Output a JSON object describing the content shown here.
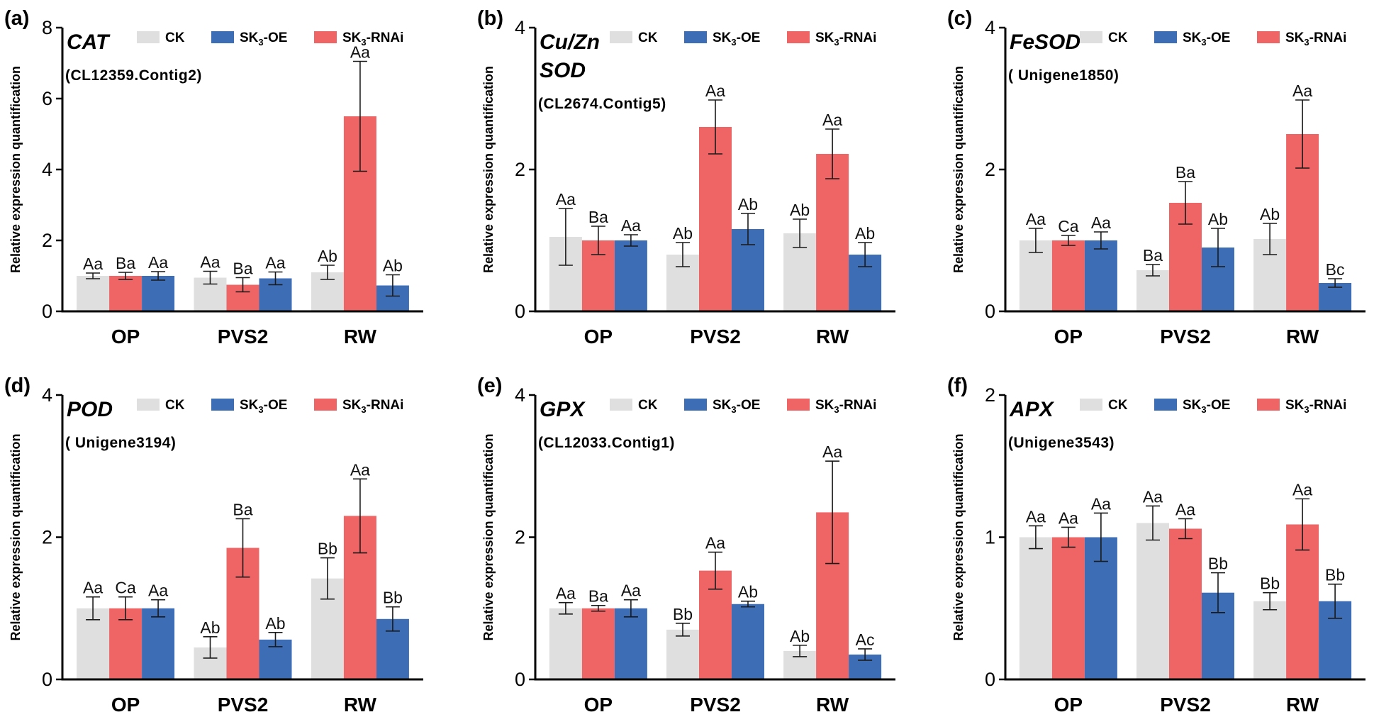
{
  "figure": {
    "categories": [
      "OP",
      "PVS2",
      "RW"
    ],
    "ylabel": "Relative  expression quantification",
    "legend": [
      {
        "key": "ck",
        "label": "CK",
        "color": "#dedfde"
      },
      {
        "key": "oe",
        "base": "SK",
        "sub": "3",
        "suffix": "-OE",
        "color": "#3d6db5"
      },
      {
        "key": "rnai",
        "base": "SK",
        "sub": "3",
        "suffix": "-RNAi",
        "color": "#ef6465"
      }
    ]
  },
  "chart_data": [
    {
      "type": "bar",
      "panel": "(a)",
      "gene": [
        "CAT"
      ],
      "contig": "(CL12359.Contig2)",
      "categories": [
        "OP",
        "PVS2",
        "RW"
      ],
      "ylabel": "Relative  expression quantification",
      "ylim": [
        0,
        8
      ],
      "yticks": [
        0,
        2,
        4,
        6,
        8
      ],
      "series": [
        {
          "name": "CK",
          "values": [
            1.0,
            0.95,
            1.1
          ],
          "errors": [
            0.08,
            0.18,
            0.2
          ],
          "labels": [
            "Aa",
            "Aa",
            "Ab"
          ]
        },
        {
          "name": "SK3-RNAi",
          "values": [
            1.0,
            0.75,
            5.5
          ],
          "errors": [
            0.1,
            0.2,
            1.55
          ],
          "labels": [
            "Ba",
            "Ba",
            "Aa"
          ]
        },
        {
          "name": "SK3-OE",
          "values": [
            1.0,
            0.93,
            0.73
          ],
          "errors": [
            0.12,
            0.18,
            0.3
          ],
          "labels": [
            "Aa",
            "Aa",
            "Ab"
          ]
        }
      ]
    },
    {
      "type": "bar",
      "panel": "(b)",
      "gene": [
        "Cu/Zn",
        "SOD"
      ],
      "contig": "(CL2674.Contig5)",
      "categories": [
        "OP",
        "PVS2",
        "RW"
      ],
      "ylabel": "Relative  expression quantification",
      "ylim": [
        0,
        4
      ],
      "yticks": [
        0,
        2,
        4
      ],
      "series": [
        {
          "name": "CK",
          "values": [
            1.05,
            0.8,
            1.1
          ],
          "errors": [
            0.4,
            0.17,
            0.2
          ],
          "labels": [
            "Aa",
            "Ab",
            "Ab"
          ]
        },
        {
          "name": "SK3-RNAi",
          "values": [
            1.0,
            2.6,
            2.22
          ],
          "errors": [
            0.2,
            0.38,
            0.35
          ],
          "labels": [
            "Ba",
            "Aa",
            "Aa"
          ]
        },
        {
          "name": "SK3-OE",
          "values": [
            1.0,
            1.16,
            0.8
          ],
          "errors": [
            0.08,
            0.22,
            0.17
          ],
          "labels": [
            "Aa",
            "Ab",
            "Ab"
          ]
        }
      ]
    },
    {
      "type": "bar",
      "panel": "(c)",
      "gene": [
        "FeSOD"
      ],
      "contig": "( Unigene1850)",
      "categories": [
        "OP",
        "PVS2",
        "RW"
      ],
      "ylabel": "Relative  expression quantification",
      "ylim": [
        0,
        4
      ],
      "yticks": [
        0,
        2,
        4
      ],
      "series": [
        {
          "name": "CK",
          "values": [
            1.0,
            0.58,
            1.02
          ],
          "errors": [
            0.17,
            0.08,
            0.22
          ],
          "labels": [
            "Aa",
            "Ba",
            "Ab"
          ]
        },
        {
          "name": "SK3-RNAi",
          "values": [
            1.0,
            1.53,
            2.5
          ],
          "errors": [
            0.07,
            0.3,
            0.48
          ],
          "labels": [
            "Ca",
            "Ba",
            "Aa"
          ]
        },
        {
          "name": "SK3-OE",
          "values": [
            1.0,
            0.9,
            0.4
          ],
          "errors": [
            0.12,
            0.27,
            0.06
          ],
          "labels": [
            "Aa",
            "Ab",
            "Bc"
          ]
        }
      ]
    },
    {
      "type": "bar",
      "panel": "(d)",
      "gene": [
        "POD"
      ],
      "contig": "( Unigene3194)",
      "categories": [
        "OP",
        "PVS2",
        "RW"
      ],
      "ylabel": "Relative  expression quantification",
      "ylim": [
        0,
        4
      ],
      "yticks": [
        0,
        2,
        4
      ],
      "series": [
        {
          "name": "CK",
          "values": [
            1.0,
            0.45,
            1.42
          ],
          "errors": [
            0.16,
            0.15,
            0.29
          ],
          "labels": [
            "Aa",
            "Ab",
            "Bb"
          ]
        },
        {
          "name": "SK3-RNAi",
          "values": [
            1.0,
            1.85,
            2.3
          ],
          "errors": [
            0.16,
            0.41,
            0.52
          ],
          "labels": [
            "Ca",
            "Ba",
            "Aa"
          ]
        },
        {
          "name": "SK3-OE",
          "values": [
            1.0,
            0.56,
            0.85
          ],
          "errors": [
            0.12,
            0.1,
            0.17
          ],
          "labels": [
            "Aa",
            "Ab",
            "Bb"
          ]
        }
      ]
    },
    {
      "type": "bar",
      "panel": "(e)",
      "gene": [
        "GPX"
      ],
      "contig": "(CL12033.Contig1)",
      "categories": [
        "OP",
        "PVS2",
        "RW"
      ],
      "ylabel": "Relative  expression quantification",
      "ylim": [
        0,
        4
      ],
      "yticks": [
        0,
        2,
        4
      ],
      "series": [
        {
          "name": "CK",
          "values": [
            1.0,
            0.7,
            0.4
          ],
          "errors": [
            0.08,
            0.09,
            0.08
          ],
          "labels": [
            "Aa",
            "Bb",
            "Ab"
          ]
        },
        {
          "name": "SK3-RNAi",
          "values": [
            1.0,
            1.53,
            2.35
          ],
          "errors": [
            0.04,
            0.26,
            0.72
          ],
          "labels": [
            "Ba",
            "Aa",
            "Aa"
          ]
        },
        {
          "name": "SK3-OE",
          "values": [
            1.0,
            1.06,
            0.35
          ],
          "errors": [
            0.12,
            0.04,
            0.08
          ],
          "labels": [
            "Aa",
            "Ab",
            "Ac"
          ]
        }
      ]
    },
    {
      "type": "bar",
      "panel": "(f)",
      "gene": [
        "APX"
      ],
      "contig": "(Unigene3543)",
      "categories": [
        "OP",
        "PVS2",
        "RW"
      ],
      "ylabel": "Relative  expression quantification",
      "ylim": [
        0,
        2
      ],
      "yticks": [
        0,
        1,
        2
      ],
      "series": [
        {
          "name": "CK",
          "values": [
            1.0,
            1.1,
            0.55
          ],
          "errors": [
            0.08,
            0.12,
            0.06
          ],
          "labels": [
            "Aa",
            "Aa",
            "Bb"
          ]
        },
        {
          "name": "SK3-RNAi",
          "values": [
            1.0,
            1.06,
            1.09
          ],
          "errors": [
            0.07,
            0.07,
            0.18
          ],
          "labels": [
            "Aa",
            "Aa",
            "Aa"
          ]
        },
        {
          "name": "SK3-OE",
          "values": [
            1.0,
            0.61,
            0.55
          ],
          "errors": [
            0.17,
            0.14,
            0.12
          ],
          "labels": [
            "Aa",
            "Bb",
            "Bb"
          ]
        }
      ]
    }
  ]
}
